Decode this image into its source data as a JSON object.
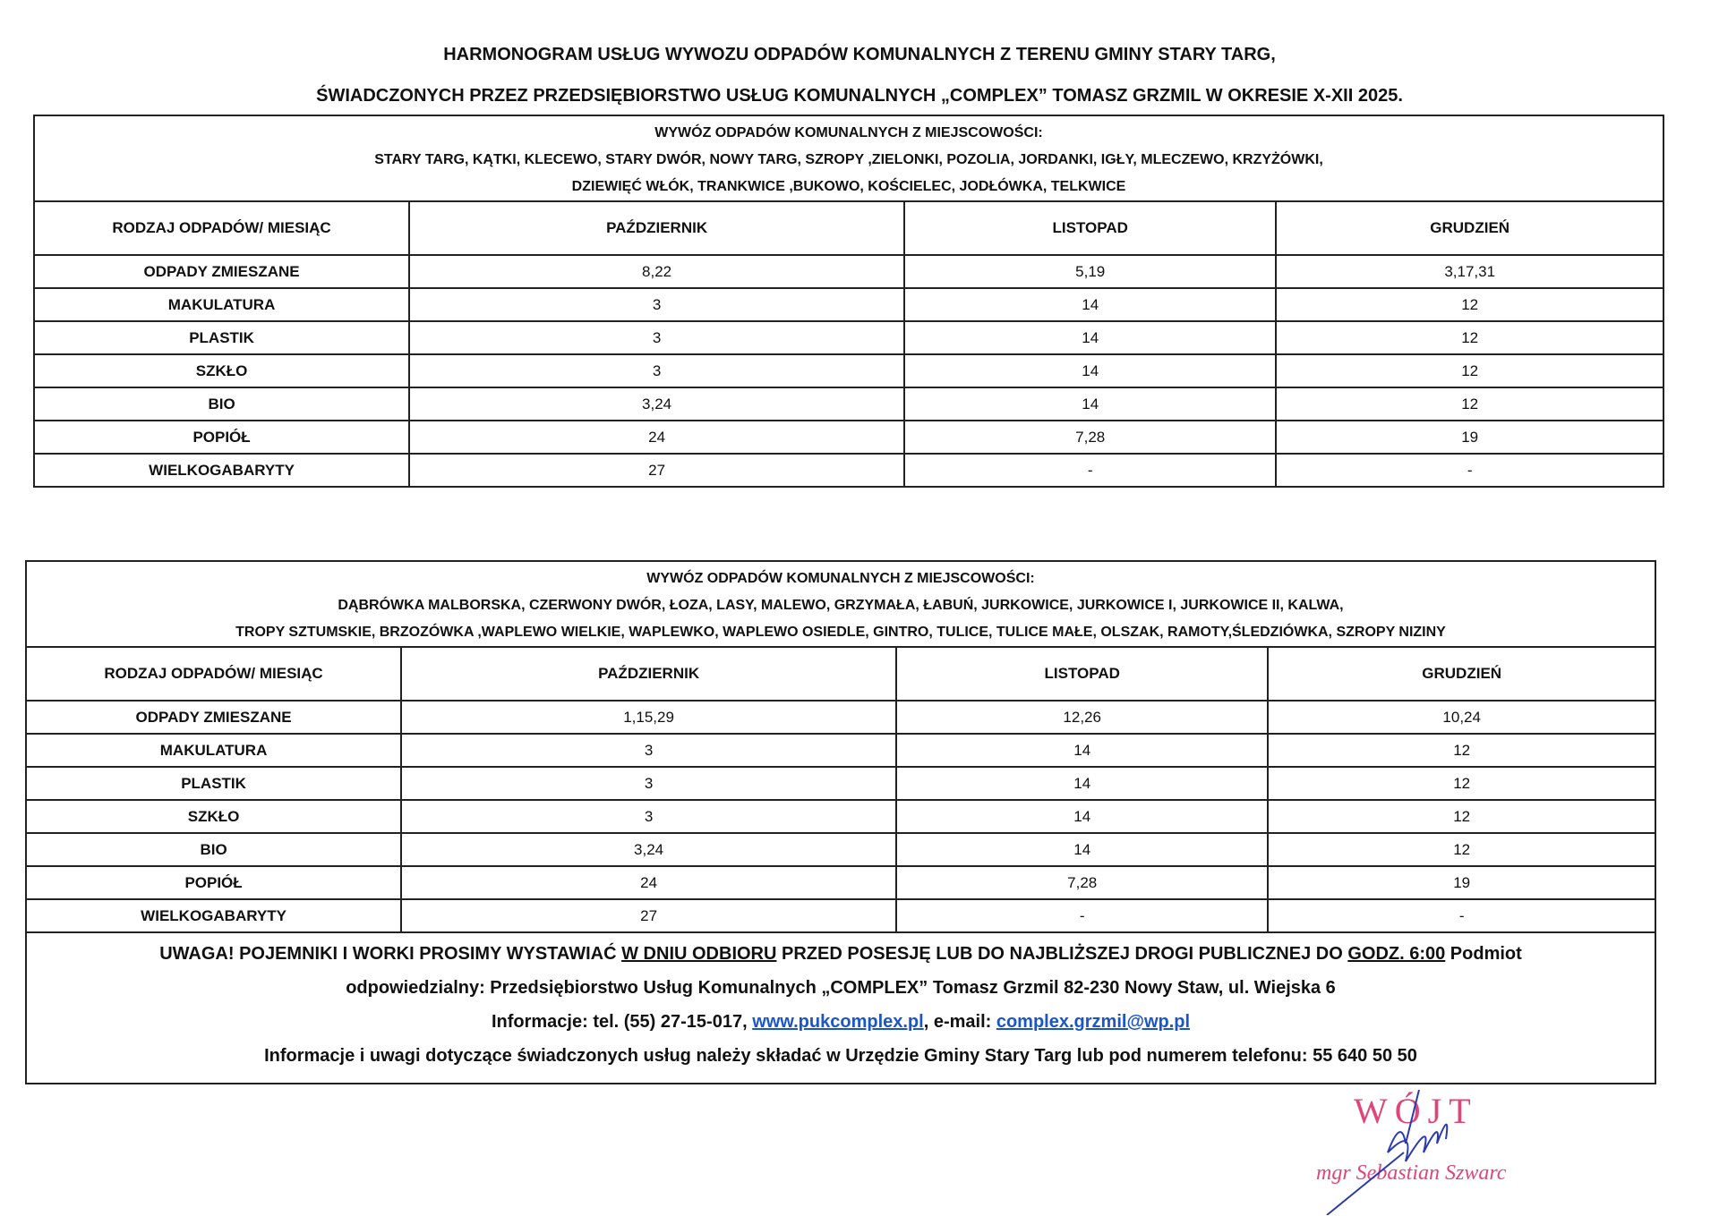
{
  "title": {
    "line1": "HARMONOGRAM USŁUG WYWOZU ODPADÓW KOMUNALNYCH Z TERENU GMINY STARY TARG,",
    "line2": "ŚWIADCZONYCH PRZEZ PRZEDSIĘBIORSTWO USŁUG KOMUNALNYCH „COMPLEX” TOMASZ GRZMIL W OKRESIE X-XII 2025."
  },
  "tables": [
    {
      "heading": "WYWÓZ ODPADÓW KOMUNALNYCH Z MIEJSCOWOŚCI:",
      "places1": "STARY TARG, KĄTKI, KLECEWO, STARY DWÓR, NOWY TARG, SZROPY ,ZIELONKI, POZOLIA, JORDANKI, IGŁY, MLECZEWO, KRZYŻÓWKI,",
      "places2": "DZIEWIĘĆ WŁÓK, TRANKWICE ,BUKOWO, KOŚCIELEC, JODŁÓWKA, TELKWICE",
      "corner": "RODZAJ ODPADÓW/ MIESIĄC",
      "months": [
        "PAŹDZIERNIK",
        "LISTOPAD",
        "GRUDZIEŃ"
      ],
      "rows": [
        [
          "ODPADY ZMIESZANE",
          "8,22",
          "5,19",
          "3,17,31"
        ],
        [
          "MAKULATURA",
          "3",
          "14",
          "12"
        ],
        [
          "PLASTIK",
          "3",
          "14",
          "12"
        ],
        [
          "SZKŁO",
          "3",
          "14",
          "12"
        ],
        [
          "BIO",
          "3,24",
          "14",
          "12"
        ],
        [
          "POPIÓŁ",
          "24",
          "7,28",
          "19"
        ],
        [
          "WIELKOGABARYTY",
          "27",
          "-",
          "-"
        ]
      ]
    },
    {
      "heading": "WYWÓZ ODPADÓW KOMUNALNYCH Z MIEJSCOWOŚCI:",
      "places1": "DĄBRÓWKA MALBORSKA, CZERWONY DWÓR, ŁOZA, LASY, MALEWO, GRZYMAŁA, ŁABUŃ, JURKOWICE, JURKOWICE I, JURKOWICE II, KALWA,",
      "places2": "TROPY SZTUMSKIE, BRZOZÓWKA ,WAPLEWO WIELKIE, WAPLEWKO, WAPLEWO OSIEDLE, GINTRO, TULICE, TULICE MAŁE, OLSZAK, RAMOTY,ŚLEDZIÓWKA, SZROPY NIZINY",
      "corner": "RODZAJ ODPADÓW/ MIESIĄC",
      "months": [
        "PAŹDZIERNIK",
        "LISTOPAD",
        "GRUDZIEŃ"
      ],
      "rows": [
        [
          "ODPADY ZMIESZANE",
          "1,15,29",
          "12,26",
          "10,24"
        ],
        [
          "MAKULATURA",
          "3",
          "14",
          "12"
        ],
        [
          "PLASTIK",
          "3",
          "14",
          "12"
        ],
        [
          "SZKŁO",
          "3",
          "14",
          "12"
        ],
        [
          "BIO",
          "3,24",
          "14",
          "12"
        ],
        [
          "POPIÓŁ",
          "24",
          "7,28",
          "19"
        ],
        [
          "WIELKOGABARYTY",
          "27",
          "-",
          "-"
        ]
      ]
    }
  ],
  "footer": {
    "a": "UWAGA! POJEMNIKI I WORKI PROSIMY WYSTAWIAĆ ",
    "b": "W DNIU ODBIORU",
    "c": " PRZED POSESJĘ LUB DO NAJBLIŻSZEJ DROGI PUBLICZNEJ DO ",
    "d": "GODZ. 6:00",
    "e": " Podmiot",
    "line2": "odpowiedzialny: Przedsiębiorstwo Usług Komunalnych „COMPLEX” Tomasz Grzmil 82-230 Nowy Staw, ul. Wiejska 6",
    "info_prefix": "Informacje: tel. (55) 27-15-017, ",
    "website": "www.pukcomplex.pl",
    "email_prefix": ", e-mail: ",
    "email": "complex.grzmil@wp.pl",
    "line4": "Informacje i uwagi dotyczące świadczonych usług należy składać w Urzędzie Gminy Stary Targ lub pod numerem telefonu: 55 640 50 50"
  },
  "stamp": {
    "title": "WÓJT",
    "name": "mgr Sebastian Szwarc",
    "color": "#e0457a",
    "pen_color": "#2a3bb0"
  }
}
